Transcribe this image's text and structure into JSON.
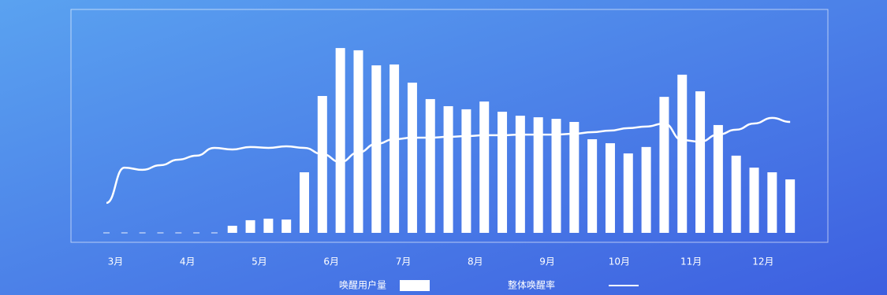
{
  "chart_data": {
    "type": "bar_line",
    "categories": [
      "3月",
      null,
      null,
      null,
      "4月",
      null,
      null,
      null,
      "5月",
      null,
      null,
      null,
      "6月",
      null,
      null,
      null,
      "7月",
      null,
      null,
      null,
      "8月",
      null,
      null,
      null,
      "9月",
      null,
      null,
      null,
      "10月",
      null,
      null,
      null,
      "11月",
      null,
      null,
      null,
      "12月",
      null,
      null
    ],
    "series": [
      {
        "name": "唤醒用户量",
        "color": "#ffffff",
        "type": "bar",
        "values": [
          0,
          0,
          0,
          0,
          0,
          0,
          0,
          3.2,
          5.7,
          6.4,
          6,
          27.3,
          61.7,
          83.3,
          82.3,
          75.5,
          75.9,
          67.7,
          60.3,
          57.1,
          55.7,
          59.2,
          54.6,
          52.8,
          52.1,
          51.4,
          50,
          42.2,
          40.4,
          35.8,
          38.7,
          61.3,
          71.3,
          63.8,
          48.6,
          34.8,
          29.4,
          27.3,
          24.1
        ]
      },
      {
        "name": "整体唤醒率",
        "color": "#ffffff",
        "type": "line",
        "values": [
          13.5,
          29.4,
          28.4,
          30.5,
          33,
          34.8,
          38.3,
          37.6,
          38.7,
          38.3,
          39,
          38.3,
          35.5,
          31.9,
          36.2,
          40.1,
          42.2,
          42.9,
          42.9,
          43.3,
          43.6,
          44,
          44,
          44.3,
          44.3,
          44.3,
          44.7,
          45.4,
          46.1,
          47.2,
          47.9,
          49.3,
          41.8,
          41.1,
          44.3,
          46.5,
          49.3,
          51.8,
          50
        ]
      }
    ],
    "ylim": [
      0,
      100
    ]
  }
}
